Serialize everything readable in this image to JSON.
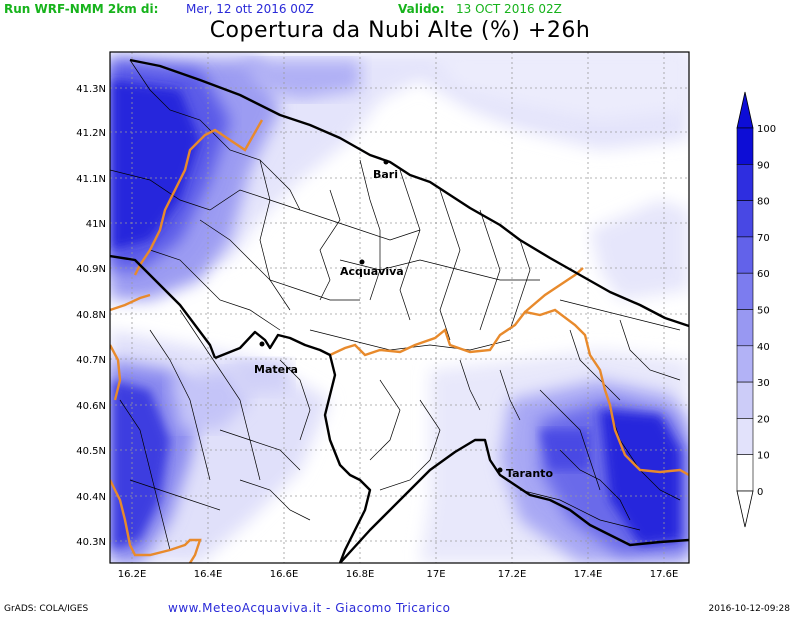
{
  "header": {
    "run_label": "Run WRF-NMM 2km di:",
    "run_date": "Mer, 12 ott 2016 00Z",
    "valid_label": "Valido:",
    "valid_date": "13 OCT 2016 02Z",
    "title": "Copertura da Nubi Alte (%) +26h"
  },
  "axes": {
    "lat_ticks": [
      "41.3N",
      "41.2N",
      "41.1N",
      "41N",
      "40.9N",
      "40.8N",
      "40.7N",
      "40.6N",
      "40.5N",
      "40.4N",
      "40.3N"
    ],
    "lon_ticks": [
      "16.2E",
      "16.4E",
      "16.6E",
      "16.8E",
      "17E",
      "17.2E",
      "17.4E",
      "17.6E"
    ]
  },
  "cities": [
    {
      "name": "Bari"
    },
    {
      "name": "Acquaviva"
    },
    {
      "name": "Matera"
    },
    {
      "name": "Taranto"
    }
  ],
  "colorbar": {
    "labels": [
      "100",
      "90",
      "80",
      "70",
      "60",
      "50",
      "40",
      "30",
      "20",
      "10",
      "0"
    ],
    "colors": [
      "#0d0dd6",
      "#2e2ee0",
      "#4848e4",
      "#6262ea",
      "#7c7cef",
      "#9898f2",
      "#b2b2f6",
      "#ccccf8",
      "#e2e2fb",
      "#ffffff"
    ]
  },
  "footer": {
    "left": "GrADS: COLA/IGES",
    "center": "www.MeteoAcquaviva.it - Giacomo Tricarico",
    "right": "2016-10-12-09:28"
  }
}
